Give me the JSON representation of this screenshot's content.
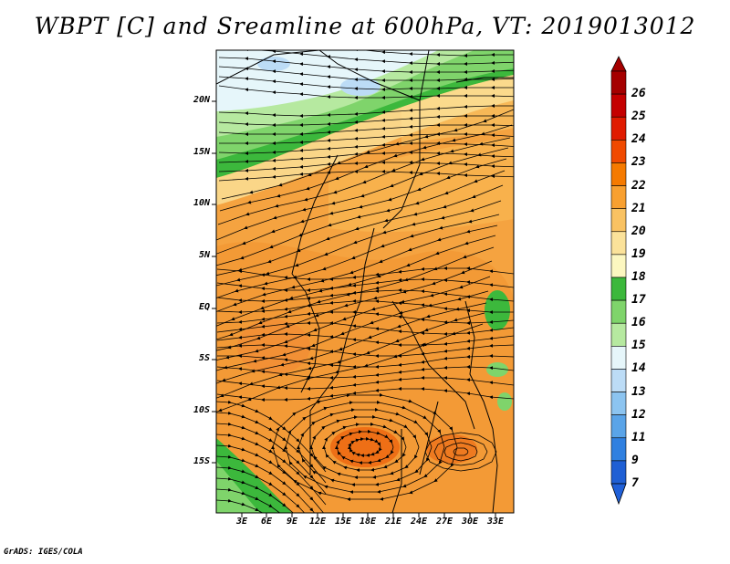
{
  "title": "WBPT [C] and Sreamline at 600hPa, VT: 2019013012",
  "footer": "GrADS: IGES/COLA",
  "map": {
    "lat_labels": [
      "20N",
      "15N",
      "10N",
      "5N",
      "EQ",
      "5S",
      "10S",
      "15S"
    ],
    "lon_labels": [
      "3E",
      "6E",
      "9E",
      "12E",
      "15E",
      "18E",
      "21E",
      "24E",
      "27E",
      "30E",
      "33E"
    ],
    "lon_range": [
      0,
      35
    ],
    "lat_range": [
      -20,
      24
    ]
  },
  "colorbar": {
    "labels": [
      "26",
      "25",
      "24",
      "23",
      "22",
      "21",
      "20",
      "19",
      "18",
      "17",
      "16",
      "15",
      "14",
      "13",
      "12",
      "11",
      "9",
      "7"
    ],
    "colors": [
      "#a50000",
      "#c40000",
      "#e01b00",
      "#f04a00",
      "#f57a00",
      "#f8a030",
      "#f9c262",
      "#fbe29a",
      "#fcf7c0",
      "#3cb83c",
      "#7fd46b",
      "#b6e9a0",
      "#e6f6fa",
      "#bcdcf6",
      "#8cc4f0",
      "#5aa4e8",
      "#3080e0",
      "#1f5fd4"
    ],
    "top_color": "#a50000",
    "bottom_color": "#2060d8"
  }
}
